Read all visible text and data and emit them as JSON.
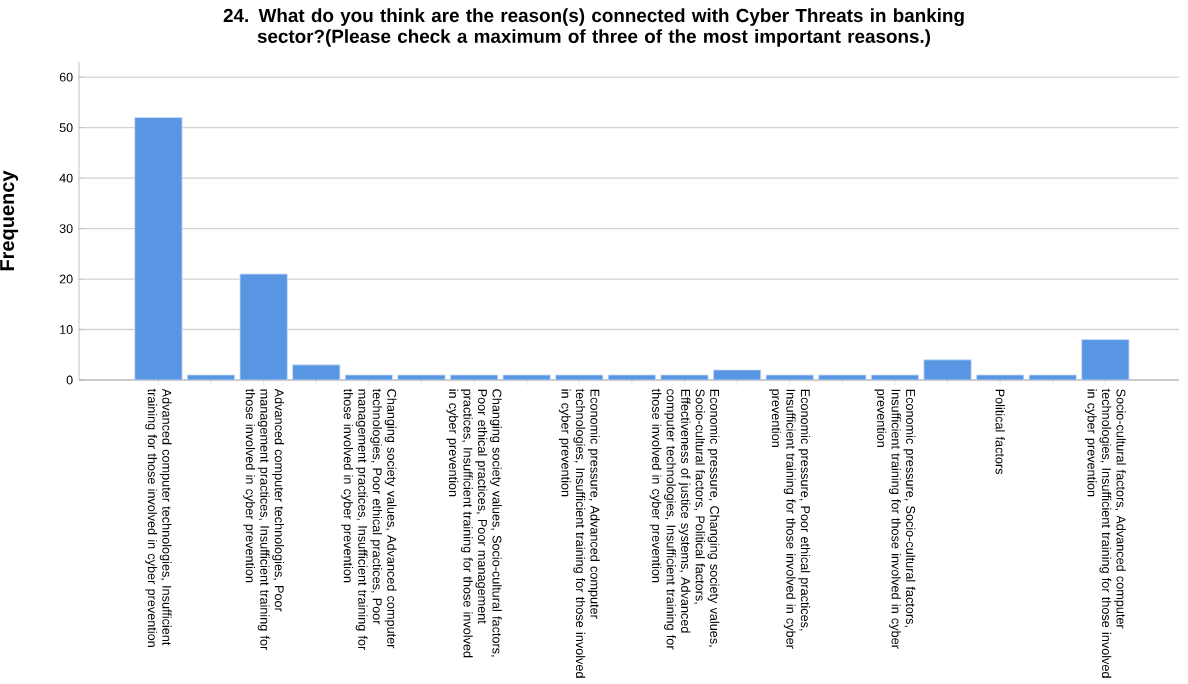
{
  "chart_data": {
    "type": "bar",
    "title": "24. What do you think are the reason(s) connected with Cyber Threats in banking sector?(Please check a maximum of three of the most important reasons.)",
    "ylabel": "Frequency",
    "categories": [
      "Advanced computer technologies, Insufficient training for those involved in cyber prevention",
      null,
      "Advanced computer technologies, Poor management practices, Insufficient training for those involved in cyber prevention",
      null,
      "Changing society values, Advanced computer technologies, Poor ethical practices, Poor management practices, Insufficient training for those involved in cyber prevention",
      null,
      "Changing society values, Socio-cultural factors, Poor ethical practices, Poor management practices, Insufficient training for those involved in cyber prevention",
      null,
      "Economic pressure, Advanced computer technologies, Insufficient training for those involved in cyber prevention",
      null,
      "Economic pressure, Changing society values, Socio-cultural factors, Political factors, Effectiveness of justice systems, Advanced computer technologies, Insufficient training for those involved in cyber prevention",
      null,
      "Economic pressure, Poor ethical practices, Insufficient training for those involved in cyber prevention",
      null,
      "Economic pressure, Socio-cultural factors, Insufficient training for those involved in cyber prevention",
      null,
      "Political factors",
      null,
      "Socio-cultural factors, Advanced computer technologies, Insufficient training for those involved in cyber prevention"
    ],
    "values": [
      52,
      1,
      21,
      3,
      1,
      1,
      1,
      1,
      1,
      1,
      1,
      2,
      1,
      1,
      1,
      4,
      1,
      1,
      8
    ],
    "color": "#5896e3",
    "ylim": [
      0,
      63
    ],
    "yticks": [
      0,
      10,
      20,
      30,
      40,
      50,
      60
    ],
    "grid": "y"
  }
}
